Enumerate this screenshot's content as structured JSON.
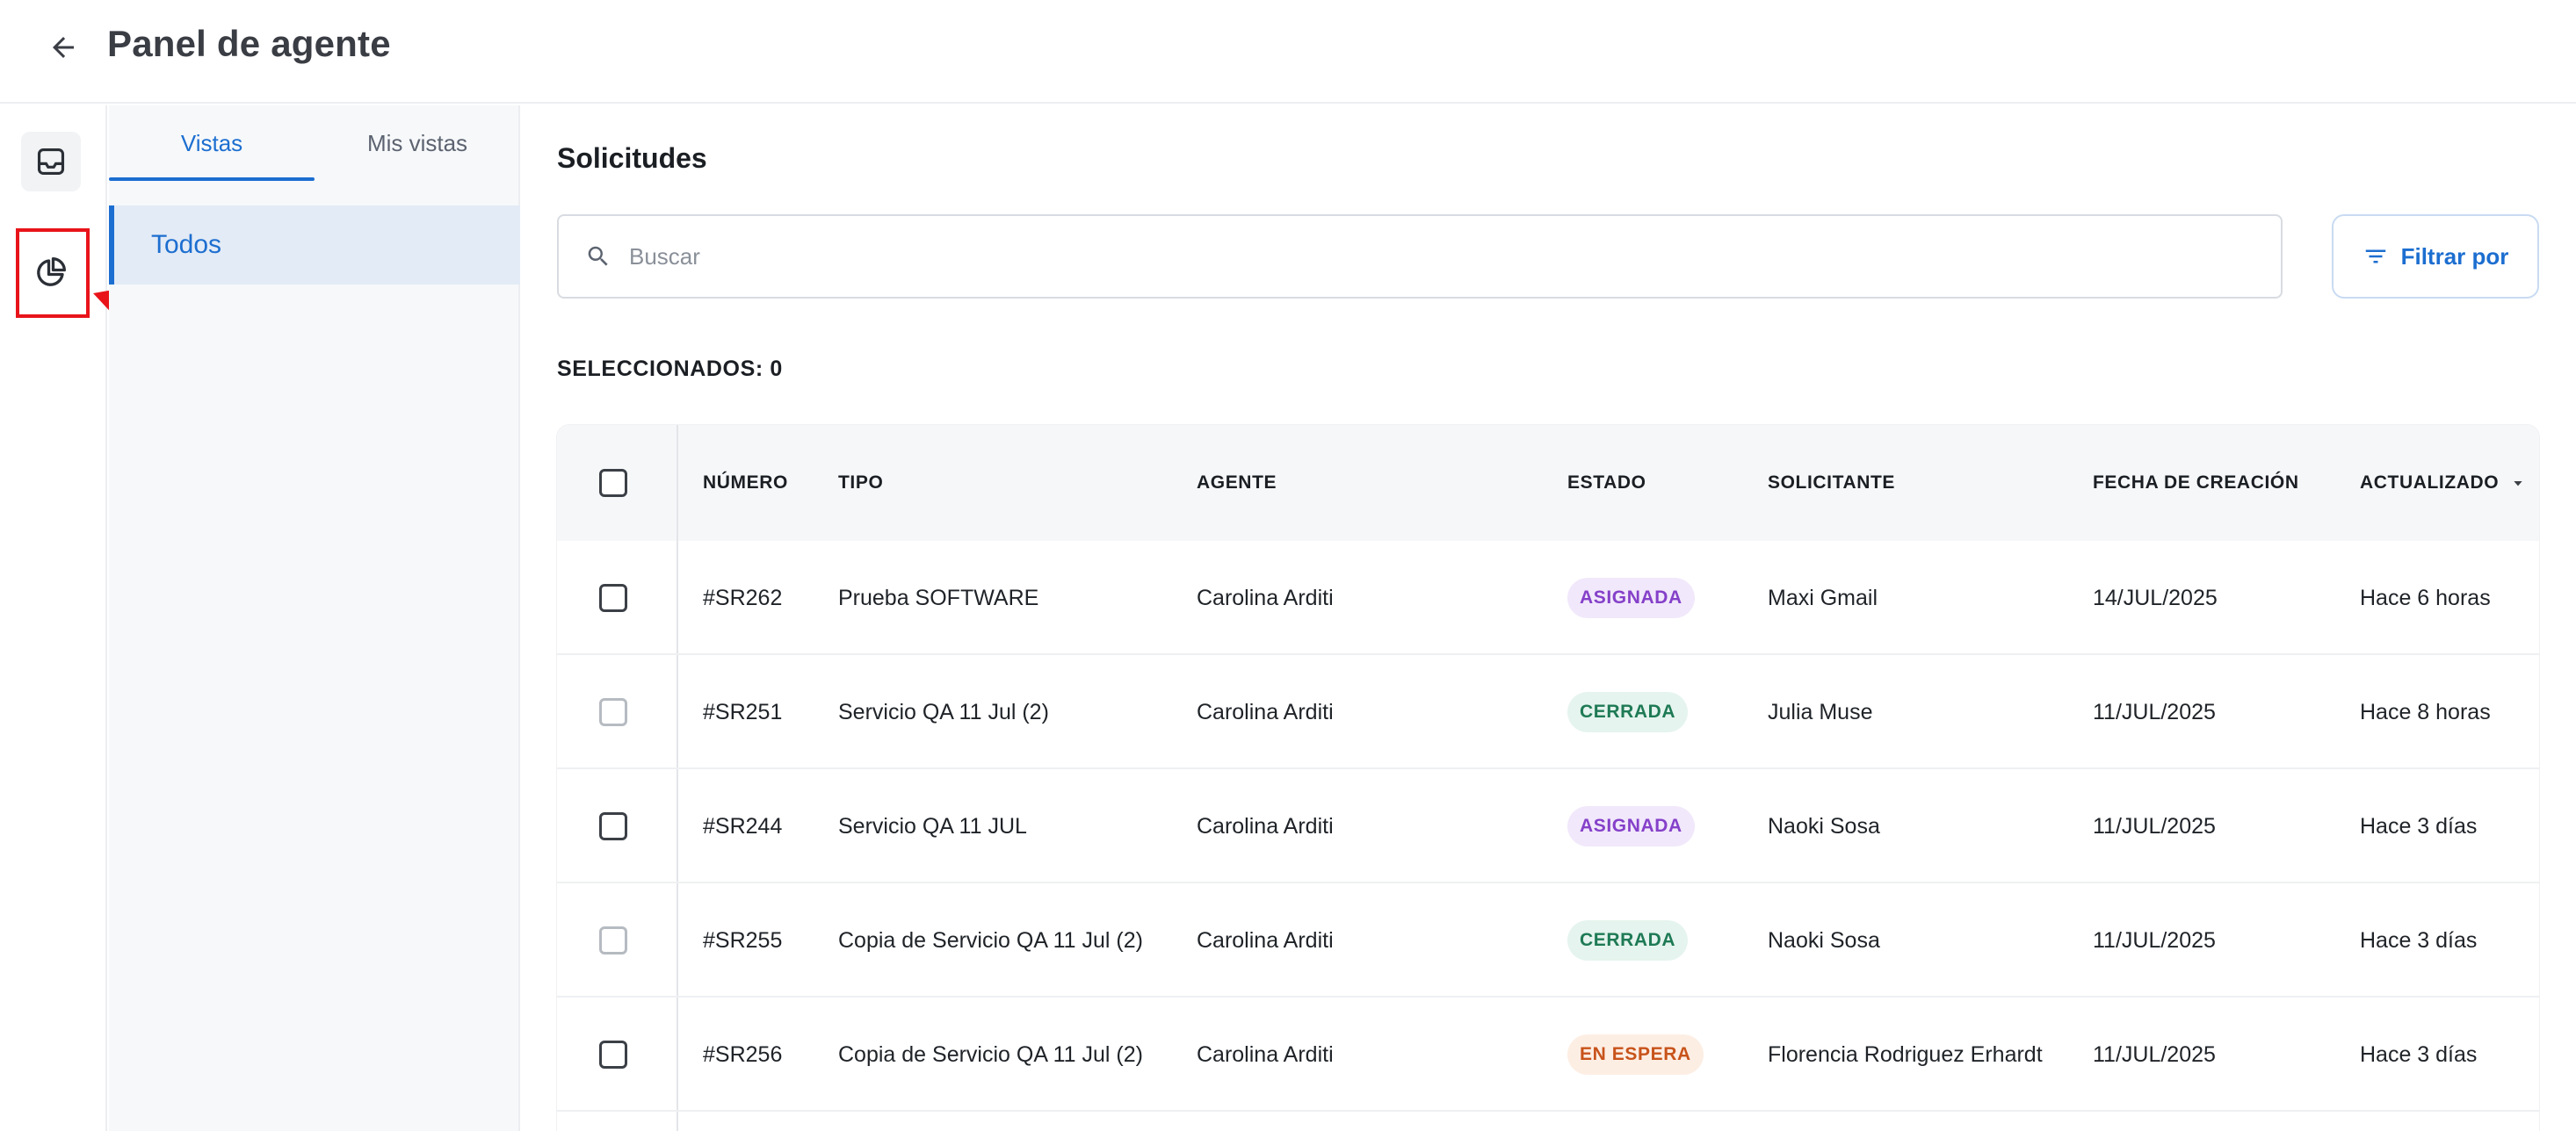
{
  "header": {
    "title": "Panel de agente",
    "back_icon": "arrow-left-icon"
  },
  "rail": {
    "items": [
      {
        "icon": "inbox-icon",
        "active": true
      },
      {
        "icon": "pie-chart-icon",
        "active": false
      }
    ]
  },
  "views_panel": {
    "tabs": [
      {
        "label": "Vistas",
        "active": true
      },
      {
        "label": "Mis vistas",
        "active": false
      }
    ],
    "items": [
      {
        "label": "Todos",
        "active": true
      }
    ]
  },
  "main": {
    "title": "Solicitudes",
    "search": {
      "placeholder": "Buscar",
      "value": ""
    },
    "filter_button": {
      "label": "Filtrar por"
    },
    "selected_label": "SELECCIONADOS: 0"
  },
  "table": {
    "columns": [
      "NÚMERO",
      "TIPO",
      "AGENTE",
      "ESTADO",
      "SOLICITANTE",
      "FECHA DE CREACIÓN",
      "ACTUALIZADO"
    ],
    "rows": [
      {
        "numero": "#SR262",
        "tipo": "Prueba SOFTWARE",
        "agente": "Carolina Arditi",
        "estado": "ASIGNADA",
        "estado_kind": "asignada",
        "solicitante": "Maxi Gmail",
        "fecha": "14/JUL/2025",
        "actualizado": "Hace 6 horas",
        "checkbox_enabled": true
      },
      {
        "numero": "#SR251",
        "tipo": "Servicio QA 11 Jul (2)",
        "agente": "Carolina Arditi",
        "estado": "CERRADA",
        "estado_kind": "cerrada",
        "solicitante": "Julia Muse",
        "fecha": "11/JUL/2025",
        "actualizado": "Hace 8 horas",
        "checkbox_enabled": false
      },
      {
        "numero": "#SR244",
        "tipo": "Servicio QA 11 JUL",
        "agente": "Carolina Arditi",
        "estado": "ASIGNADA",
        "estado_kind": "asignada",
        "solicitante": "Naoki Sosa",
        "fecha": "11/JUL/2025",
        "actualizado": "Hace 3 días",
        "checkbox_enabled": true
      },
      {
        "numero": "#SR255",
        "tipo": "Copia de Servicio QA 11 Jul (2)",
        "agente": "Carolina Arditi",
        "estado": "CERRADA",
        "estado_kind": "cerrada",
        "solicitante": "Naoki Sosa",
        "fecha": "11/JUL/2025",
        "actualizado": "Hace 3 días",
        "checkbox_enabled": false
      },
      {
        "numero": "#SR256",
        "tipo": "Copia de Servicio QA 11 Jul (2)",
        "agente": "Carolina Arditi",
        "estado": "EN ESPERA",
        "estado_kind": "espera",
        "solicitante": "Florencia Rodriguez Erhardt",
        "fecha": "11/JUL/2025",
        "actualizado": "Hace 3 días",
        "checkbox_enabled": true
      }
    ]
  },
  "colors": {
    "accent": "#1c6ed0",
    "annotation": "#e8141a"
  }
}
